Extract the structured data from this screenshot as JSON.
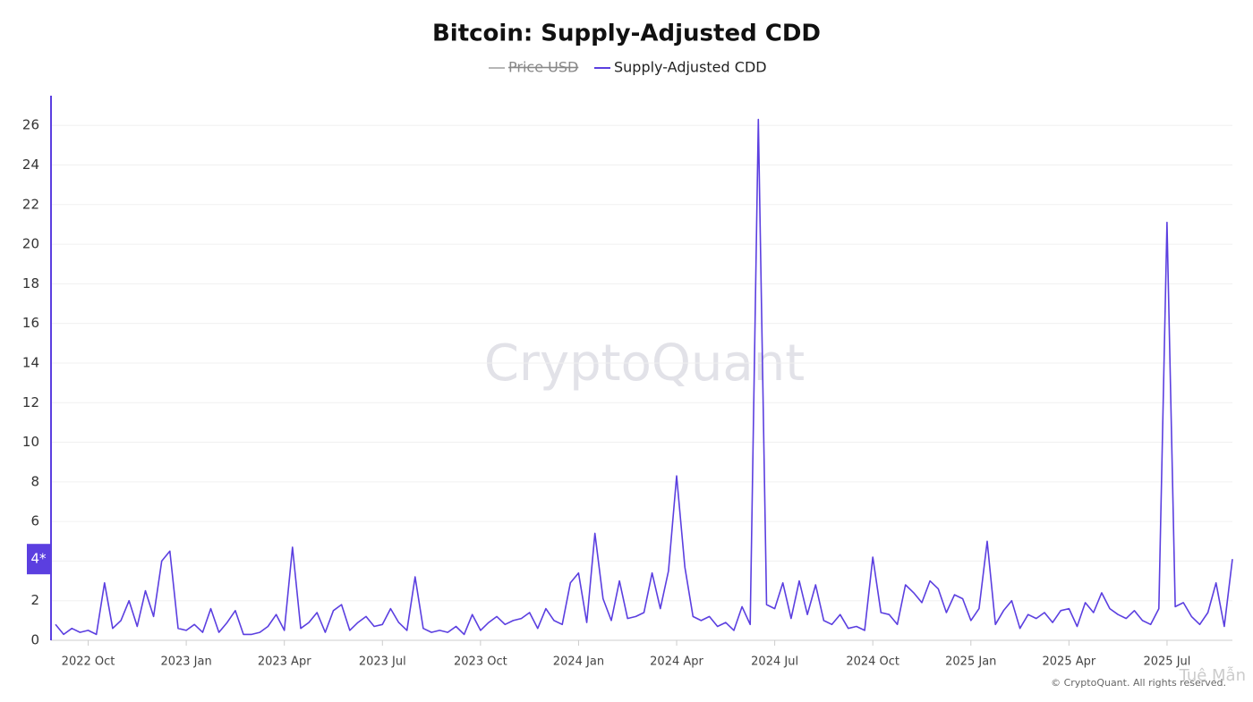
{
  "chart_data": {
    "type": "line",
    "title": "Bitcoin: Supply-Adjusted CDD",
    "watermark": "CryptoQuant",
    "copyright": "© CryptoQuant. All rights reserved.",
    "corner_watermark": "Tuệ Mẫn",
    "hidden_series": [
      {
        "name": "Price USD",
        "color": "#9e9e9e"
      }
    ],
    "categories": [
      null,
      null,
      null,
      null,
      "2022 Oct",
      null,
      null,
      null,
      null,
      null,
      null,
      null,
      null,
      null,
      null,
      null,
      "2023 Jan",
      null,
      null,
      null,
      null,
      null,
      null,
      null,
      null,
      null,
      null,
      null,
      "2023 Apr",
      null,
      null,
      null,
      null,
      null,
      null,
      null,
      null,
      null,
      null,
      null,
      "2023 Jul",
      null,
      null,
      null,
      null,
      null,
      null,
      null,
      null,
      null,
      null,
      null,
      "2023 Oct",
      null,
      null,
      null,
      null,
      null,
      null,
      null,
      null,
      null,
      null,
      null,
      "2024 Jan",
      null,
      null,
      null,
      null,
      null,
      null,
      null,
      null,
      null,
      null,
      null,
      "2024 Apr",
      null,
      null,
      null,
      null,
      null,
      null,
      null,
      null,
      null,
      null,
      null,
      "2024 Jul",
      null,
      null,
      null,
      null,
      null,
      null,
      null,
      null,
      null,
      null,
      null,
      "2024 Oct",
      null,
      null,
      null,
      null,
      null,
      null,
      null,
      null,
      null,
      null,
      null,
      "2025 Jan",
      null,
      null,
      null,
      null,
      null,
      null,
      null,
      null,
      null,
      null,
      null,
      "2025 Apr",
      null,
      null,
      null,
      null,
      null,
      null,
      null,
      null,
      null,
      null,
      null,
      "2025 Jul",
      null,
      null,
      null,
      null,
      null,
      null,
      null,
      null
    ],
    "series": [
      {
        "name": "Supply-Adjusted CDD",
        "color": "#5b3fe0",
        "values": [
          0.8,
          0.3,
          0.6,
          0.4,
          0.5,
          0.3,
          2.9,
          0.6,
          1.0,
          2.0,
          0.7,
          2.5,
          1.2,
          4.0,
          4.5,
          0.6,
          0.5,
          0.8,
          0.4,
          1.6,
          0.4,
          0.9,
          1.5,
          0.3,
          0.3,
          0.4,
          0.7,
          1.3,
          0.5,
          4.7,
          0.6,
          0.9,
          1.4,
          0.4,
          1.5,
          1.8,
          0.5,
          0.9,
          1.2,
          0.7,
          0.8,
          1.6,
          0.9,
          0.5,
          3.2,
          0.6,
          0.4,
          0.5,
          0.4,
          0.7,
          0.3,
          1.3,
          0.5,
          0.9,
          1.2,
          0.8,
          1.0,
          1.1,
          1.4,
          0.6,
          1.6,
          1.0,
          0.8,
          2.9,
          3.4,
          0.9,
          5.4,
          2.1,
          1.0,
          3.0,
          1.1,
          1.2,
          1.4,
          3.4,
          1.6,
          3.5,
          8.3,
          3.7,
          1.2,
          1.0,
          1.2,
          0.7,
          0.9,
          0.5,
          1.7,
          0.8,
          26.3,
          1.8,
          1.6,
          2.9,
          1.1,
          3.0,
          1.3,
          2.8,
          1.0,
          0.8,
          1.3,
          0.6,
          0.7,
          0.5,
          4.2,
          1.4,
          1.3,
          0.8,
          2.8,
          2.4,
          1.9,
          3.0,
          2.6,
          1.4,
          2.3,
          2.1,
          1.0,
          1.6,
          5.0,
          0.8,
          1.5,
          2.0,
          0.6,
          1.3,
          1.1,
          1.4,
          0.9,
          1.5,
          1.6,
          0.7,
          1.9,
          1.4,
          2.4,
          1.6,
          1.3,
          1.1,
          1.5,
          1.0,
          0.8,
          1.6,
          21.1,
          1.7,
          1.9,
          1.2,
          0.8,
          1.4,
          2.9,
          0.7,
          4.1
        ]
      }
    ],
    "current_label": "4*",
    "ylim": [
      0,
      27.5
    ],
    "yticks": [
      0,
      2,
      4,
      6,
      8,
      10,
      12,
      14,
      16,
      18,
      20,
      22,
      24,
      26
    ],
    "grid": true
  }
}
